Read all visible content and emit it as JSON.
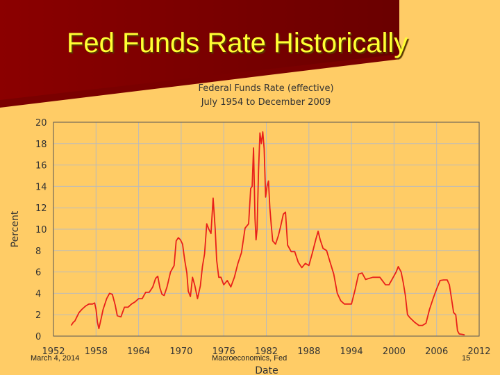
{
  "slide": {
    "title": "Fed Funds Rate Historically",
    "footer_left": "March 4, 2014",
    "footer_center": "Macroeconomics, Fed",
    "footer_right": "15"
  },
  "colors": {
    "line": "#E8201A",
    "grid": "#BBBBBB",
    "plot_bg": "#FFCC66"
  },
  "chart_data": {
    "type": "line",
    "title": "Federal Funds Rate (effective)",
    "subtitle": "July 1954 to December 2009",
    "xlabel": "Date",
    "ylabel": "Percent",
    "xlim": [
      1952,
      2012
    ],
    "ylim": [
      0,
      20
    ],
    "xticks": [
      1952,
      1958,
      1964,
      1970,
      1976,
      1982,
      1988,
      1994,
      2000,
      2006,
      2012
    ],
    "yticks": [
      0,
      2,
      4,
      6,
      8,
      10,
      12,
      14,
      16,
      18,
      20
    ],
    "grid": true,
    "series": [
      {
        "x": [
          1954.5,
          1954.8,
          1955.0,
          1955.3,
          1955.6,
          1956.0,
          1956.5,
          1957.0,
          1957.5,
          1957.8,
          1958.0,
          1958.2,
          1958.4,
          1958.7,
          1959.0,
          1959.5,
          1959.9,
          1960.3,
          1960.7,
          1961.0,
          1961.5,
          1962.0,
          1962.5,
          1963.0,
          1963.5,
          1964.0,
          1964.5,
          1965.0,
          1965.5,
          1966.0,
          1966.4,
          1966.7,
          1967.0,
          1967.3,
          1967.6,
          1968.0,
          1968.5,
          1969.0,
          1969.3,
          1969.6,
          1969.9,
          1970.2,
          1970.5,
          1970.8,
          1971.0,
          1971.3,
          1971.6,
          1971.9,
          1972.3,
          1972.7,
          1973.0,
          1973.3,
          1973.6,
          1973.9,
          1974.2,
          1974.5,
          1974.8,
          1975.0,
          1975.3,
          1975.6,
          1976.0,
          1976.5,
          1977.0,
          1977.5,
          1978.0,
          1978.5,
          1979.0,
          1979.5,
          1979.8,
          1980.0,
          1980.2,
          1980.4,
          1980.55,
          1980.7,
          1980.9,
          1981.1,
          1981.3,
          1981.5,
          1981.7,
          1981.9,
          1982.1,
          1982.3,
          1982.5,
          1982.7,
          1982.9,
          1983.3,
          1983.7,
          1984.0,
          1984.4,
          1984.7,
          1985.0,
          1985.5,
          1986.0,
          1986.5,
          1987.0,
          1987.5,
          1988.0,
          1988.5,
          1989.0,
          1989.3,
          1989.6,
          1990.0,
          1990.5,
          1991.0,
          1991.5,
          1992.0,
          1992.5,
          1993.0,
          1993.5,
          1994.0,
          1994.5,
          1995.0,
          1995.5,
          1996.0,
          1997.0,
          1998.0,
          1998.8,
          1999.3,
          1999.8,
          2000.3,
          2000.6,
          2001.0,
          2001.3,
          2001.6,
          2001.9,
          2002.2,
          2002.9,
          2003.5,
          2004.0,
          2004.5,
          2005.0,
          2005.5,
          2006.0,
          2006.5,
          2007.0,
          2007.5,
          2007.8,
          2008.1,
          2008.4,
          2008.7,
          2008.95,
          2009.2,
          2009.6,
          2009.95
        ],
        "y": [
          1.0,
          1.3,
          1.4,
          1.8,
          2.2,
          2.5,
          2.8,
          3.0,
          3.0,
          3.1,
          2.5,
          1.3,
          0.7,
          1.6,
          2.5,
          3.5,
          4.0,
          3.9,
          2.9,
          1.9,
          1.8,
          2.7,
          2.7,
          3.0,
          3.2,
          3.5,
          3.5,
          4.1,
          4.1,
          4.6,
          5.4,
          5.6,
          4.5,
          3.9,
          3.8,
          4.6,
          6.0,
          6.6,
          8.9,
          9.2,
          9.0,
          8.6,
          7.1,
          5.9,
          4.2,
          3.7,
          5.5,
          4.8,
          3.5,
          4.7,
          6.5,
          7.7,
          10.5,
          10.0,
          9.6,
          12.9,
          10.0,
          7.1,
          5.5,
          5.5,
          4.8,
          5.2,
          4.6,
          5.5,
          6.8,
          7.8,
          10.1,
          10.5,
          13.8,
          14.0,
          17.6,
          11.0,
          9.0,
          10.0,
          15.5,
          19.0,
          18.0,
          19.1,
          17.5,
          13.0,
          14.0,
          14.5,
          12.0,
          10.3,
          8.9,
          8.6,
          9.4,
          10.2,
          11.4,
          11.6,
          8.5,
          7.9,
          7.9,
          6.9,
          6.4,
          6.8,
          6.6,
          7.8,
          9.1,
          9.8,
          9.0,
          8.2,
          8.0,
          6.9,
          5.8,
          4.0,
          3.3,
          3.0,
          3.0,
          3.0,
          4.3,
          5.8,
          5.9,
          5.3,
          5.5,
          5.5,
          4.8,
          4.8,
          5.4,
          6.0,
          6.5,
          6.0,
          5.0,
          3.8,
          2.0,
          1.75,
          1.3,
          1.0,
          1.0,
          1.2,
          2.5,
          3.5,
          4.4,
          5.2,
          5.25,
          5.25,
          4.8,
          3.5,
          2.2,
          2.0,
          0.5,
          0.2,
          0.16,
          0.12
        ]
      }
    ]
  }
}
